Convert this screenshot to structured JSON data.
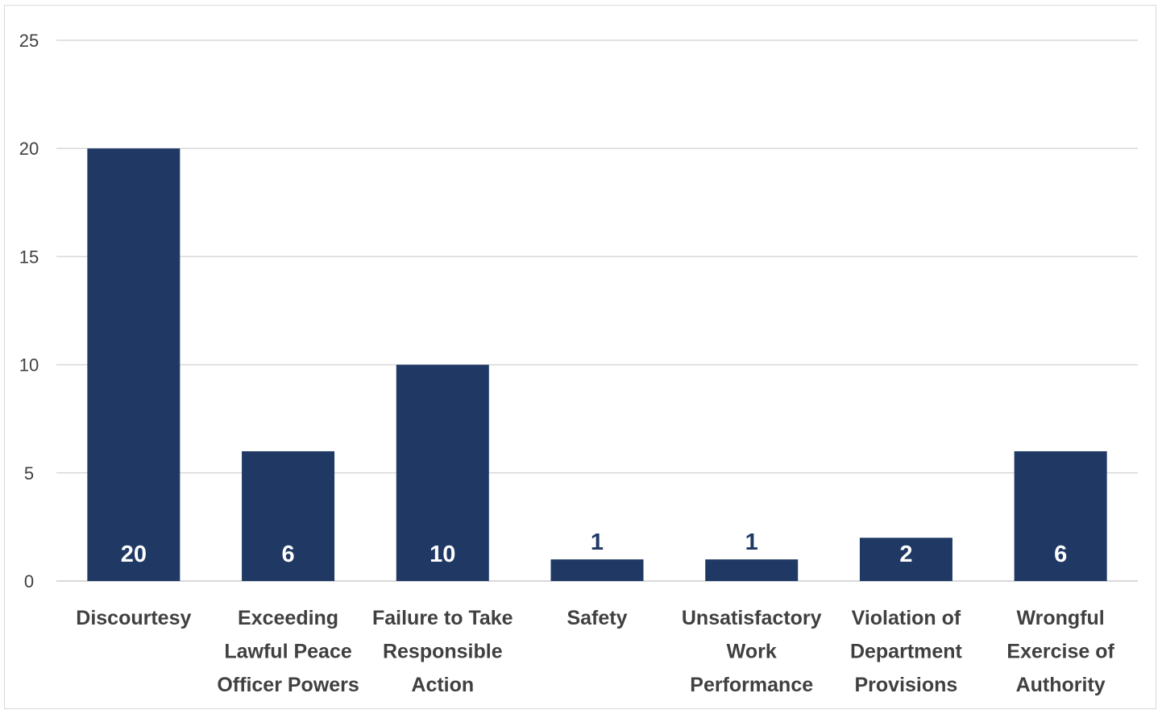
{
  "chart_data": {
    "type": "bar",
    "title": "",
    "xlabel": "",
    "ylabel": "",
    "categories": [
      "Discourtesy",
      "Exceeding Lawful Peace Officer Powers",
      "Failure to Take Responsible Action",
      "Safety",
      "Unsatisfactory Work Performance",
      "Violation of Department Provisions",
      "Wrongful Exercise of Authority"
    ],
    "category_lines": [
      [
        "Discourtesy"
      ],
      [
        "Exceeding",
        "Lawful Peace",
        "Officer Powers"
      ],
      [
        "Failure to Take",
        "Responsible",
        "Action"
      ],
      [
        "Safety"
      ],
      [
        "Unsatisfactory",
        "Work",
        "Performance"
      ],
      [
        "Violation of",
        "Department",
        "Provisions"
      ],
      [
        "Wrongful",
        "Exercise of",
        "Authority"
      ]
    ],
    "values": [
      20,
      6,
      10,
      1,
      1,
      2,
      6
    ],
    "data_labels": [
      "20",
      "6",
      "10",
      "1",
      "1",
      "2",
      "6"
    ],
    "ylim": [
      0,
      25
    ],
    "yticks": [
      "0",
      "5",
      "10",
      "15",
      "20",
      "25"
    ],
    "grid": true,
    "legend": "none",
    "colors": {
      "bar": "#1f3864",
      "label_inside": "#ffffff",
      "label_outside": "#1f3864",
      "gridline": "#d9d9d9",
      "axis_text": "#404040"
    }
  }
}
